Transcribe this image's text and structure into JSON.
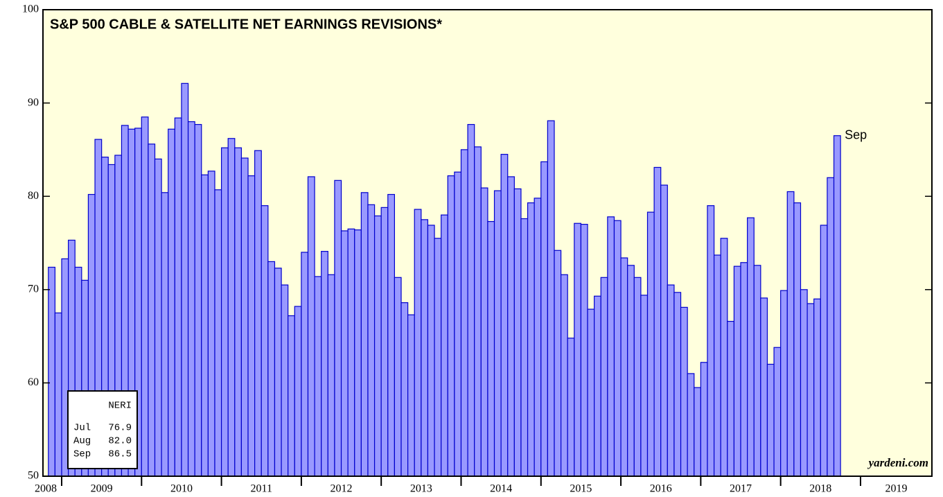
{
  "chart_data": {
    "type": "bar",
    "title": "S&P 500 CABLE & SATELLITE NET EARNINGS REVISIONS*",
    "annotation": "Sep",
    "source": "yardeni.com",
    "legend_box": {
      "title": "NERI",
      "rows": [
        [
          "Jul",
          "76.9"
        ],
        [
          "Aug",
          "82.0"
        ],
        [
          "Sep",
          "86.5"
        ]
      ]
    },
    "year_labels": [
      "2008",
      "2009",
      "2010",
      "2011",
      "2012",
      "2013",
      "2014",
      "2015",
      "2016",
      "2017",
      "2018",
      "2019"
    ],
    "categories": [
      null,
      null,
      null,
      null,
      null,
      null,
      null,
      null,
      null,
      null,
      null,
      null,
      null,
      null,
      null,
      null,
      null,
      null,
      null,
      null,
      null,
      null,
      null,
      null,
      null,
      null,
      null,
      null,
      null,
      null,
      null,
      null,
      null,
      null,
      null,
      null,
      null,
      null,
      null,
      null,
      null,
      null,
      null,
      null,
      null,
      null,
      null,
      null,
      null,
      null,
      null,
      null,
      null,
      null,
      null,
      null,
      null,
      null,
      null,
      null,
      null,
      null,
      null,
      null,
      null,
      null,
      null,
      null,
      null,
      null,
      null,
      null,
      null,
      null,
      null,
      null,
      null,
      null,
      null,
      null,
      null,
      null,
      null,
      null,
      null,
      null,
      null,
      null,
      null,
      null,
      null,
      null,
      null,
      null,
      null,
      null,
      null,
      null,
      null,
      null,
      null,
      null,
      null,
      null,
      null,
      null,
      null,
      null,
      null,
      null,
      null,
      null,
      null,
      null,
      null,
      null,
      null,
      null,
      null
    ],
    "values": [
      72.4,
      67.5,
      73.3,
      75.3,
      72.4,
      71.0,
      80.2,
      86.1,
      84.2,
      83.4,
      84.4,
      87.6,
      87.2,
      87.3,
      88.5,
      85.6,
      84.0,
      80.4,
      87.2,
      88.4,
      92.1,
      88.0,
      87.7,
      82.3,
      82.7,
      80.7,
      85.2,
      86.2,
      85.2,
      84.1,
      82.2,
      84.9,
      79.0,
      73.0,
      72.3,
      70.5,
      67.2,
      68.2,
      74.0,
      82.1,
      71.4,
      74.1,
      71.6,
      81.7,
      76.3,
      76.5,
      76.4,
      80.4,
      79.1,
      77.9,
      78.8,
      80.2,
      71.3,
      68.6,
      67.3,
      78.6,
      77.5,
      76.9,
      75.5,
      78.0,
      82.2,
      82.6,
      85.0,
      87.7,
      85.3,
      80.9,
      77.3,
      80.6,
      84.5,
      82.1,
      80.8,
      77.6,
      79.3,
      79.8,
      83.7,
      88.1,
      74.2,
      71.6,
      64.8,
      77.1,
      77.0,
      67.9,
      69.3,
      71.3,
      77.8,
      77.4,
      73.4,
      72.6,
      71.3,
      69.4,
      78.3,
      83.1,
      81.2,
      70.5,
      69.7,
      68.1,
      61.0,
      59.5,
      62.2,
      79.0,
      73.7,
      75.5,
      66.6,
      72.5,
      72.9,
      77.7,
      72.6,
      69.1,
      62.0,
      63.8,
      69.9,
      80.5,
      79.3,
      70.0,
      68.5,
      69.0,
      76.9,
      82.0,
      86.5
    ],
    "color": "#9999ff",
    "edge_color": "#0000cc",
    "background": "#ffffdd",
    "ylim": [
      50,
      100
    ],
    "yticks": [
      50,
      60,
      70,
      80,
      90,
      100
    ]
  }
}
